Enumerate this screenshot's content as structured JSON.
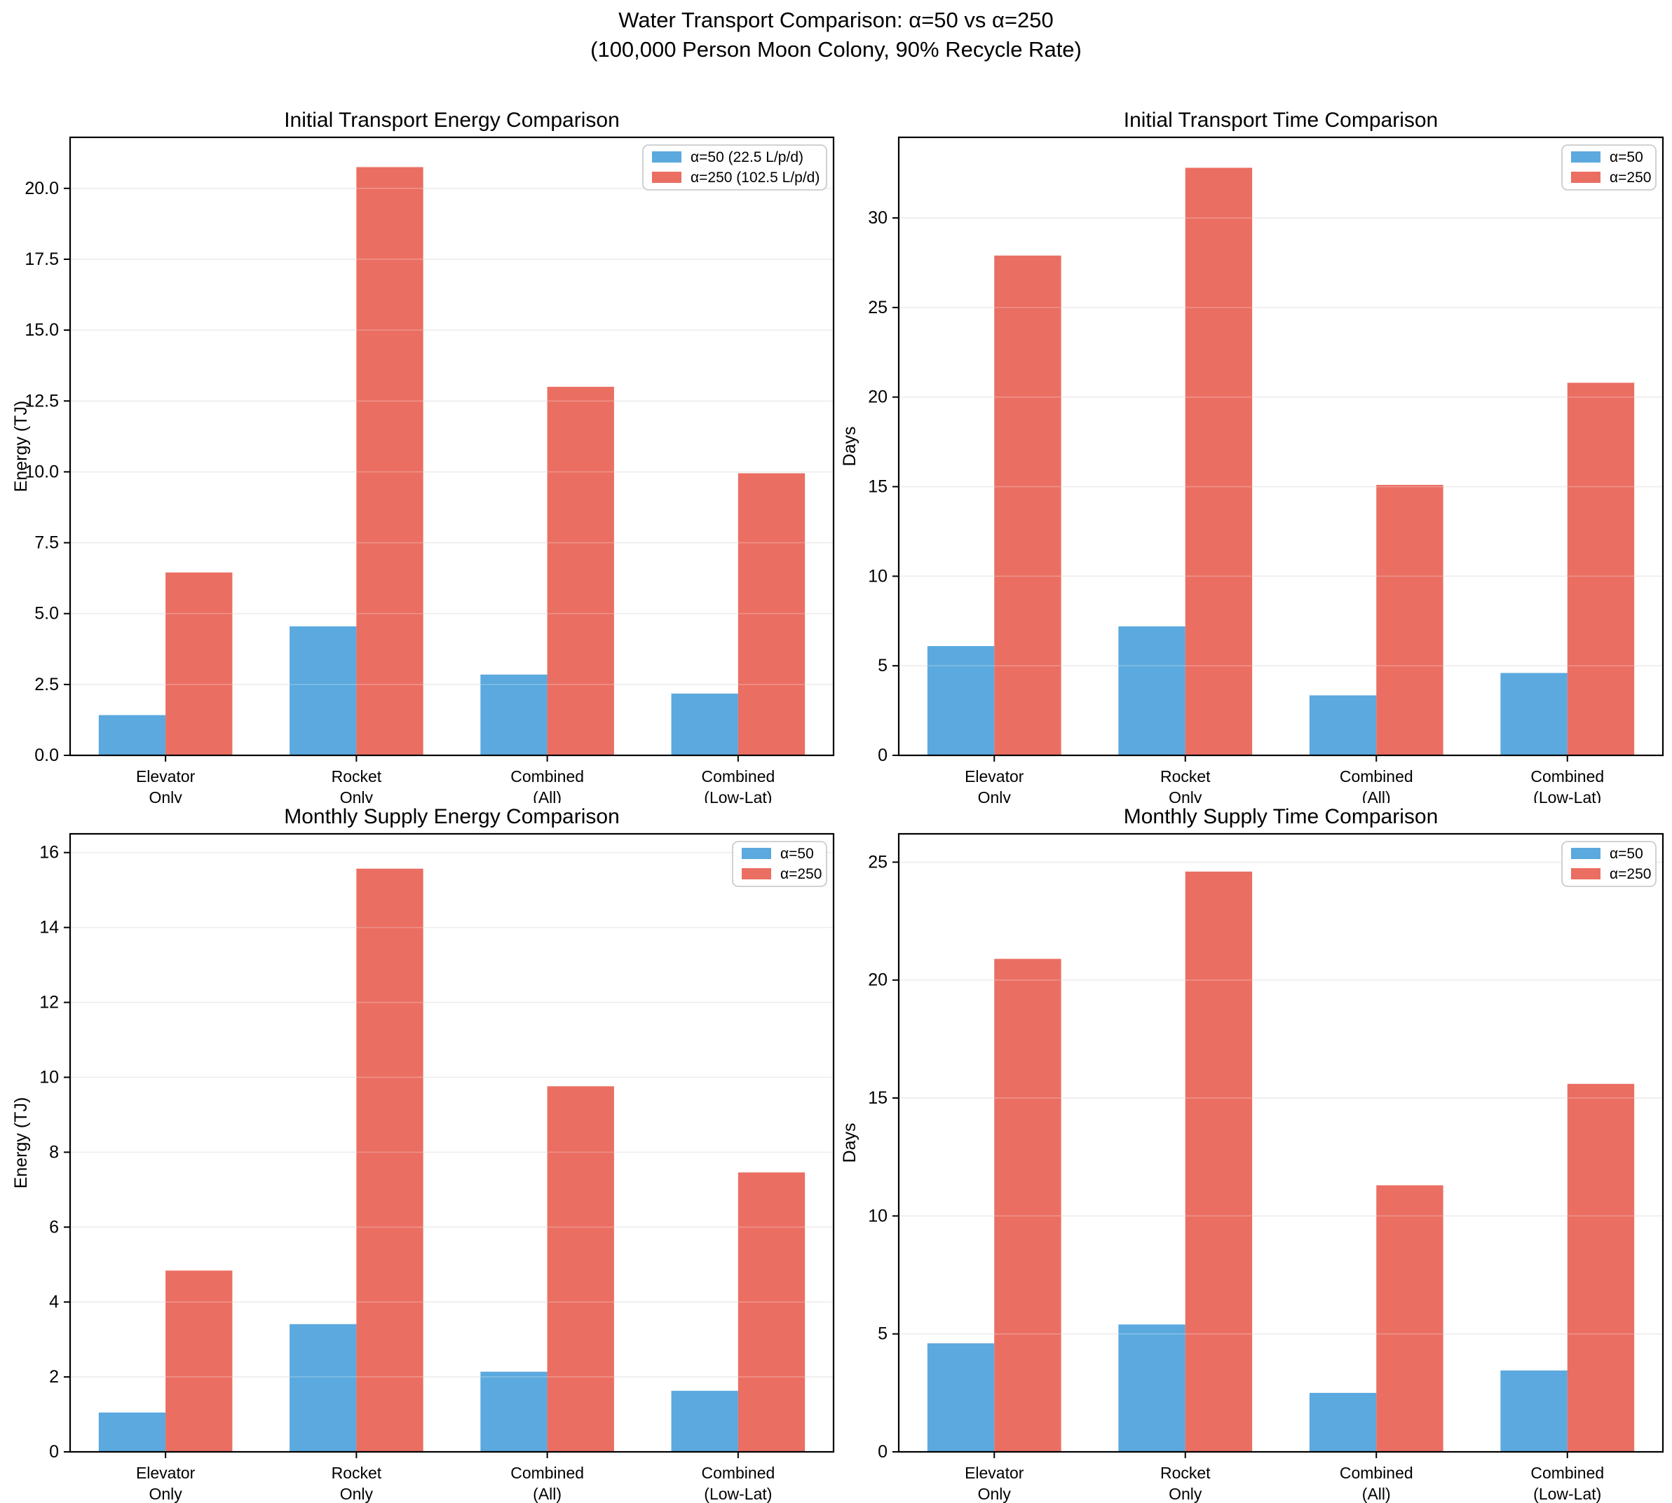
{
  "suptitle": {
    "line1": "Water Transport Comparison: α=50 vs α=250",
    "line2": "(100,000 Person Moon Colony, 90% Recycle Rate)"
  },
  "colors": {
    "alpha50_blue": "#5BA9DE",
    "alpha250_red": "#EA6E62",
    "gridline": "#e7e7e7",
    "grid_over_bars": "rgba(255,255,255,0.25)",
    "spine": "#000000",
    "legend_border": "#cccccc",
    "legend_background": "#ffffff",
    "text": "#000000",
    "background": "#ffffff"
  },
  "chart_data": [
    {
      "type": "bar",
      "title": "Initial Transport Energy Comparison",
      "ylabel": "Energy (TJ)",
      "xlabel": "",
      "grid": true,
      "legend_position": "upper right",
      "categories": [
        "Elevator\nOnly",
        "Rocket\nOnly",
        "Combined\n(All)",
        "Combined\n(Low-Lat)"
      ],
      "category_lines": [
        [
          "Elevator",
          "Only"
        ],
        [
          "Rocket",
          "Only"
        ],
        [
          "Combined",
          "(All)"
        ],
        [
          "Combined",
          "(Low-Lat)"
        ]
      ],
      "series": [
        {
          "name": "α=50 (22.5 L/p/d)",
          "color_key": "alpha50_blue",
          "values": [
            1.42,
            4.55,
            2.85,
            2.18
          ]
        },
        {
          "name": "α=250 (102.5 L/p/d)",
          "color_key": "alpha250_red",
          "values": [
            6.45,
            20.75,
            13.0,
            9.95
          ]
        }
      ],
      "ylim": [
        0,
        21.8
      ],
      "ytick_values": [
        0,
        2.5,
        5,
        7.5,
        10,
        12.5,
        15,
        17.5,
        20
      ],
      "ytick_labels": [
        "0.0",
        "2.5",
        "5.0",
        "7.5",
        "10.0",
        "12.5",
        "15.0",
        "17.5",
        "20.0"
      ]
    },
    {
      "type": "bar",
      "title": "Initial Transport Time Comparison",
      "ylabel": "Days",
      "xlabel": "",
      "grid": true,
      "legend_position": "upper right",
      "categories": [
        "Elevator\nOnly",
        "Rocket\nOnly",
        "Combined\n(All)",
        "Combined\n(Low-Lat)"
      ],
      "category_lines": [
        [
          "Elevator",
          "Only"
        ],
        [
          "Rocket",
          "Only"
        ],
        [
          "Combined",
          "(All)"
        ],
        [
          "Combined",
          "(Low-Lat)"
        ]
      ],
      "series": [
        {
          "name": "α=50",
          "color_key": "alpha50_blue",
          "values": [
            6.1,
            7.2,
            3.35,
            4.6
          ]
        },
        {
          "name": "α=250",
          "color_key": "alpha250_red",
          "values": [
            27.9,
            32.8,
            15.1,
            20.8
          ]
        }
      ],
      "ylim": [
        0,
        34.5
      ],
      "ytick_values": [
        0,
        5,
        10,
        15,
        20,
        25,
        30
      ],
      "ytick_labels": [
        "0",
        "5",
        "10",
        "15",
        "20",
        "25",
        "30"
      ]
    },
    {
      "type": "bar",
      "title": "Monthly Supply Energy Comparison",
      "ylabel": "Energy (TJ)",
      "xlabel": "",
      "grid": true,
      "legend_position": "upper right",
      "categories": [
        "Elevator\nOnly",
        "Rocket\nOnly",
        "Combined\n(All)",
        "Combined\n(Low-Lat)"
      ],
      "category_lines": [
        [
          "Elevator",
          "Only"
        ],
        [
          "Rocket",
          "Only"
        ],
        [
          "Combined",
          "(All)"
        ],
        [
          "Combined",
          "(Low-Lat)"
        ]
      ],
      "series": [
        {
          "name": "α=50",
          "color_key": "alpha50_blue",
          "values": [
            1.05,
            3.41,
            2.14,
            1.63
          ]
        },
        {
          "name": "α=250",
          "color_key": "alpha250_red",
          "values": [
            4.84,
            15.57,
            9.76,
            7.46
          ]
        }
      ],
      "ylim": [
        0,
        16.5
      ],
      "ytick_values": [
        0,
        2,
        4,
        6,
        8,
        10,
        12,
        14,
        16
      ],
      "ytick_labels": [
        "0",
        "2",
        "4",
        "6",
        "8",
        "10",
        "12",
        "14",
        "16"
      ]
    },
    {
      "type": "bar",
      "title": "Monthly Supply Time Comparison",
      "ylabel": "Days",
      "xlabel": "",
      "grid": true,
      "legend_position": "upper right",
      "categories": [
        "Elevator\nOnly",
        "Rocket\nOnly",
        "Combined\n(All)",
        "Combined\n(Low-Lat)"
      ],
      "category_lines": [
        [
          "Elevator",
          "Only"
        ],
        [
          "Rocket",
          "Only"
        ],
        [
          "Combined",
          "(All)"
        ],
        [
          "Combined",
          "(Low-Lat)"
        ]
      ],
      "series": [
        {
          "name": "α=50",
          "color_key": "alpha50_blue",
          "values": [
            4.6,
            5.4,
            2.5,
            3.45
          ]
        },
        {
          "name": "α=250",
          "color_key": "alpha250_red",
          "values": [
            20.9,
            24.6,
            11.3,
            15.6
          ]
        }
      ],
      "ylim": [
        0,
        26.2
      ],
      "ytick_values": [
        0,
        5,
        10,
        15,
        20,
        25
      ],
      "ytick_labels": [
        "0",
        "5",
        "10",
        "15",
        "20",
        "25"
      ]
    }
  ]
}
